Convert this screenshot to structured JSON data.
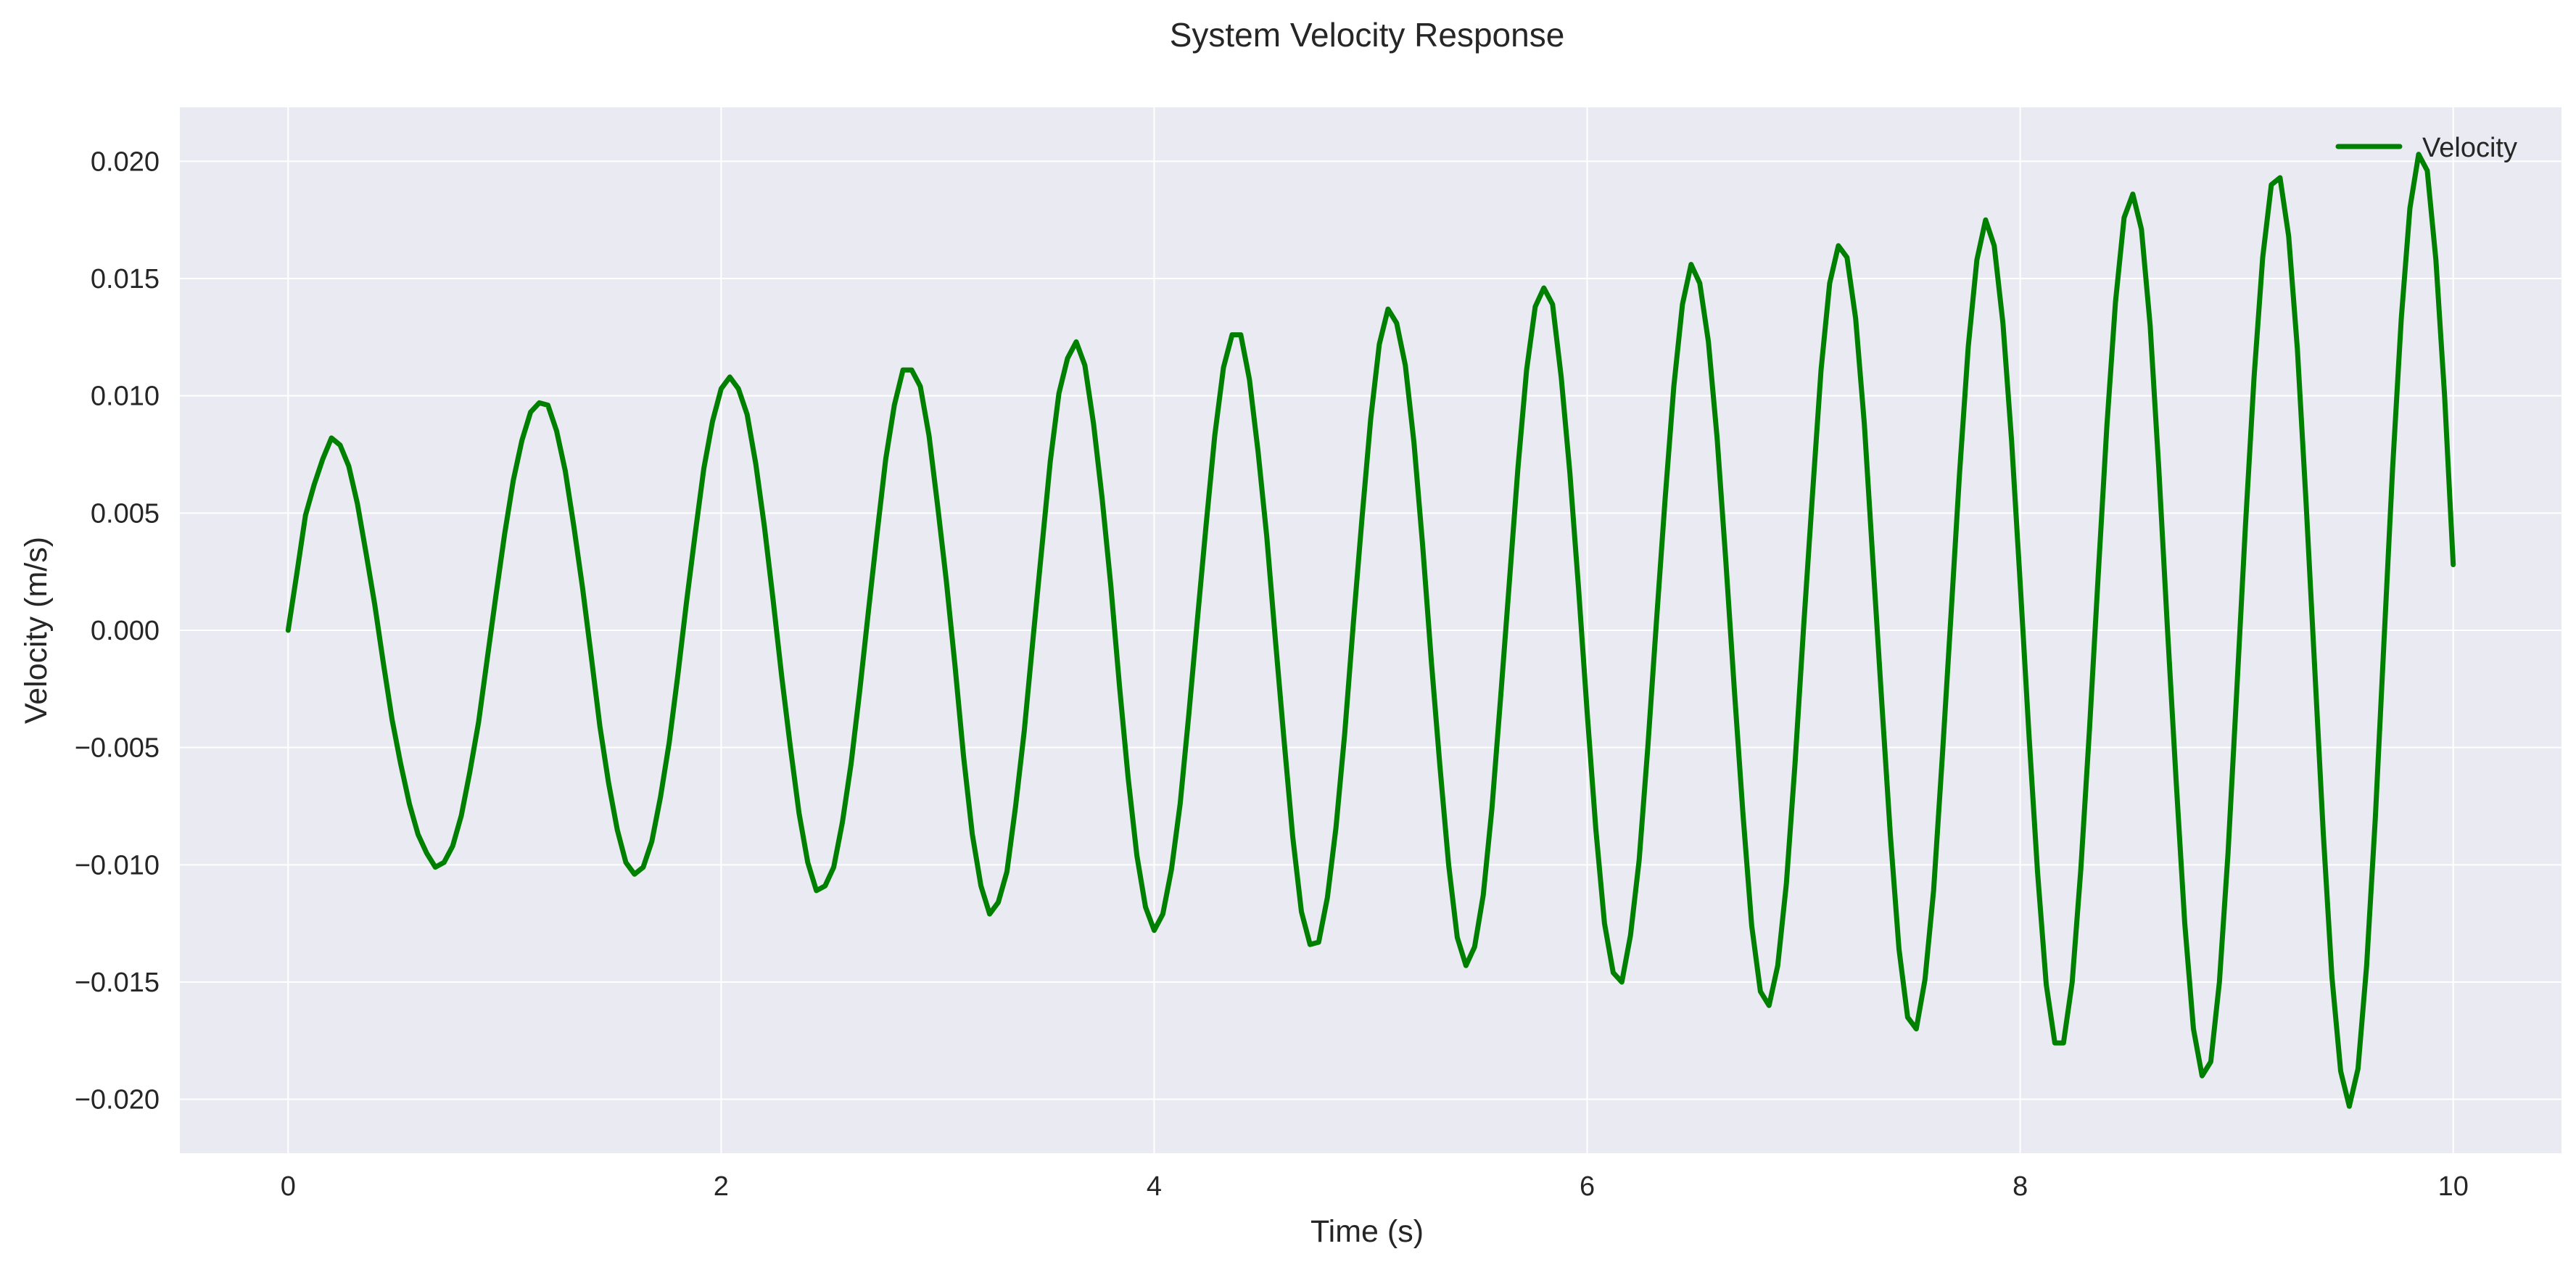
{
  "chart_data": {
    "type": "line",
    "title": "System Velocity Response",
    "xlabel": "Time (s)",
    "ylabel": "Velocity (m/s)",
    "xlim": [
      -0.5,
      10.5
    ],
    "ylim": [
      -0.0223,
      0.0223
    ],
    "x_ticks": [
      0,
      2,
      4,
      6,
      8,
      10
    ],
    "x_tick_labels": [
      "0",
      "2",
      "4",
      "6",
      "8",
      "10"
    ],
    "y_ticks": [
      -0.02,
      -0.015,
      -0.01,
      -0.005,
      0.0,
      0.005,
      0.01,
      0.015,
      0.02
    ],
    "y_tick_labels": [
      "−0.020",
      "−0.015",
      "−0.010",
      "−0.005",
      "0.000",
      "0.005",
      "0.010",
      "0.015",
      "0.020"
    ],
    "grid": true,
    "legend_position": "top-right",
    "colors": {
      "line": "#008000",
      "plot_background": "#eaeaf2",
      "grid": "#ffffff",
      "text": "#262626"
    },
    "series": [
      {
        "name": "Velocity",
        "x": [
          0.0,
          0.04,
          0.08,
          0.12,
          0.16,
          0.2,
          0.24,
          0.28,
          0.32,
          0.36,
          0.4,
          0.44,
          0.48,
          0.52,
          0.56,
          0.6,
          0.64,
          0.68,
          0.72,
          0.76,
          0.8,
          0.84,
          0.88,
          0.92,
          0.96,
          1.0,
          1.04,
          1.08,
          1.12,
          1.16,
          1.2,
          1.24,
          1.28,
          1.32,
          1.36,
          1.4,
          1.44,
          1.48,
          1.52,
          1.56,
          1.6,
          1.64,
          1.68,
          1.72,
          1.76,
          1.8,
          1.84,
          1.88,
          1.92,
          1.96,
          2.0,
          2.04,
          2.08,
          2.12,
          2.16,
          2.2,
          2.24,
          2.28,
          2.32,
          2.36,
          2.4,
          2.44,
          2.48,
          2.52,
          2.56,
          2.6,
          2.64,
          2.68,
          2.72,
          2.76,
          2.8,
          2.84,
          2.88,
          2.92,
          2.96,
          3.0,
          3.04,
          3.08,
          3.12,
          3.16,
          3.2,
          3.24,
          3.28,
          3.32,
          3.36,
          3.4,
          3.44,
          3.48,
          3.52,
          3.56,
          3.6,
          3.64,
          3.68,
          3.72,
          3.76,
          3.8,
          3.84,
          3.88,
          3.92,
          3.96,
          4.0,
          4.04,
          4.08,
          4.12,
          4.16,
          4.2,
          4.24,
          4.28,
          4.32,
          4.36,
          4.4,
          4.44,
          4.48,
          4.52,
          4.56,
          4.6,
          4.64,
          4.68,
          4.72,
          4.76,
          4.8,
          4.84,
          4.88,
          4.92,
          4.96,
          5.0,
          5.04,
          5.08,
          5.12,
          5.16,
          5.2,
          5.24,
          5.28,
          5.32,
          5.36,
          5.4,
          5.44,
          5.48,
          5.52,
          5.56,
          5.6,
          5.64,
          5.68,
          5.72,
          5.76,
          5.8,
          5.84,
          5.88,
          5.92,
          5.96,
          6.0,
          6.04,
          6.08,
          6.12,
          6.16,
          6.2,
          6.24,
          6.28,
          6.32,
          6.36,
          6.4,
          6.44,
          6.48,
          6.52,
          6.56,
          6.6,
          6.64,
          6.68,
          6.72,
          6.76,
          6.8,
          6.84,
          6.88,
          6.92,
          6.96,
          7.0,
          7.04,
          7.08,
          7.12,
          7.16,
          7.2,
          7.24,
          7.28,
          7.32,
          7.36,
          7.4,
          7.44,
          7.48,
          7.52,
          7.56,
          7.6,
          7.64,
          7.68,
          7.72,
          7.76,
          7.8,
          7.84,
          7.88,
          7.92,
          7.96,
          8.0,
          8.04,
          8.08,
          8.12,
          8.16,
          8.2,
          8.24,
          8.28,
          8.32,
          8.36,
          8.4,
          8.44,
          8.48,
          8.52,
          8.56,
          8.6,
          8.64,
          8.68,
          8.72,
          8.76,
          8.8,
          8.84,
          8.88,
          8.92,
          8.96,
          9.0,
          9.04,
          9.08,
          9.12,
          9.16,
          9.2,
          9.24,
          9.28,
          9.32,
          9.36,
          9.4,
          9.44,
          9.48,
          9.52,
          9.56,
          9.6,
          9.64,
          9.68,
          9.72,
          9.76,
          9.8,
          9.84,
          9.88,
          9.92,
          9.96,
          10.0
        ],
        "y": [
          0.0,
          0.0024,
          0.0049,
          0.0062,
          0.0073,
          0.0082,
          0.0079,
          0.007,
          0.0054,
          0.0033,
          0.0011,
          -0.0014,
          -0.0038,
          -0.0057,
          -0.0074,
          -0.0087,
          -0.0095,
          -0.0101,
          -0.0099,
          -0.0092,
          -0.0079,
          -0.006,
          -0.0039,
          -0.0012,
          0.0015,
          0.0041,
          0.0064,
          0.0081,
          0.0093,
          0.0097,
          0.0096,
          0.0085,
          0.0068,
          0.0044,
          0.0018,
          -0.0011,
          -0.0041,
          -0.0065,
          -0.0085,
          -0.0099,
          -0.0104,
          -0.0101,
          -0.009,
          -0.0071,
          -0.0048,
          -0.0019,
          0.0012,
          0.0041,
          0.0069,
          0.0089,
          0.0103,
          0.0108,
          0.0103,
          0.0092,
          0.0071,
          0.0044,
          0.0013,
          -0.002,
          -0.005,
          -0.0078,
          -0.0099,
          -0.0111,
          -0.0109,
          -0.0101,
          -0.0082,
          -0.0057,
          -0.0026,
          0.0008,
          0.0041,
          0.0073,
          0.0096,
          0.0111,
          0.0111,
          0.0104,
          0.0083,
          0.0053,
          0.0021,
          -0.0015,
          -0.0054,
          -0.0087,
          -0.0109,
          -0.0121,
          -0.0116,
          -0.0103,
          -0.0075,
          -0.0043,
          -0.0004,
          0.0034,
          0.0072,
          0.0101,
          0.0116,
          0.0123,
          0.0113,
          0.0088,
          0.0056,
          0.0019,
          -0.0024,
          -0.0063,
          -0.0096,
          -0.0118,
          -0.0128,
          -0.0121,
          -0.0102,
          -0.0074,
          -0.0036,
          0.0005,
          0.0045,
          0.0083,
          0.0112,
          0.0126,
          0.0126,
          0.0107,
          0.0076,
          0.004,
          -0.0004,
          -0.0047,
          -0.0088,
          -0.012,
          -0.0134,
          -0.0133,
          -0.0114,
          -0.0084,
          -0.0044,
          0.0003,
          0.0048,
          0.009,
          0.0122,
          0.0137,
          0.0131,
          0.0113,
          0.008,
          0.0036,
          -0.0013,
          -0.0058,
          -0.01,
          -0.0131,
          -0.0143,
          -0.0135,
          -0.0113,
          -0.0076,
          -0.0029,
          0.002,
          0.0069,
          0.0111,
          0.0138,
          0.0146,
          0.0139,
          0.0108,
          0.0067,
          0.0018,
          -0.0035,
          -0.0085,
          -0.0125,
          -0.0146,
          -0.015,
          -0.013,
          -0.0098,
          -0.005,
          0.0004,
          0.0056,
          0.0104,
          0.0139,
          0.0156,
          0.0148,
          0.0123,
          0.0082,
          0.003,
          -0.0026,
          -0.0079,
          -0.0126,
          -0.0154,
          -0.016,
          -0.0143,
          -0.0108,
          -0.0057,
          0.0002,
          0.0057,
          0.0111,
          0.0148,
          0.0164,
          0.0159,
          0.0133,
          0.0088,
          0.0029,
          -0.003,
          -0.0087,
          -0.0136,
          -0.0165,
          -0.017,
          -0.0149,
          -0.0111,
          -0.0054,
          0.0006,
          0.0067,
          0.0121,
          0.0158,
          0.0175,
          0.0164,
          0.0131,
          0.0081,
          0.002,
          -0.0044,
          -0.0103,
          -0.0151,
          -0.0176,
          -0.0176,
          -0.015,
          -0.0102,
          -0.0042,
          0.0023,
          0.0087,
          0.014,
          0.0176,
          0.0186,
          0.0171,
          0.013,
          0.0069,
          0.0001,
          -0.0064,
          -0.0125,
          -0.017,
          -0.019,
          -0.0184,
          -0.015,
          -0.0095,
          -0.0026,
          0.0044,
          0.0108,
          0.0159,
          0.019,
          0.0193,
          0.0168,
          0.012,
          0.0055,
          -0.0016,
          -0.0087,
          -0.0148,
          -0.0188,
          -0.0203,
          -0.0187,
          -0.0143,
          -0.008,
          -0.0005,
          0.0069,
          0.0133,
          0.018,
          0.0203,
          0.0196,
          0.0158,
          0.01,
          0.0028
        ]
      }
    ]
  }
}
